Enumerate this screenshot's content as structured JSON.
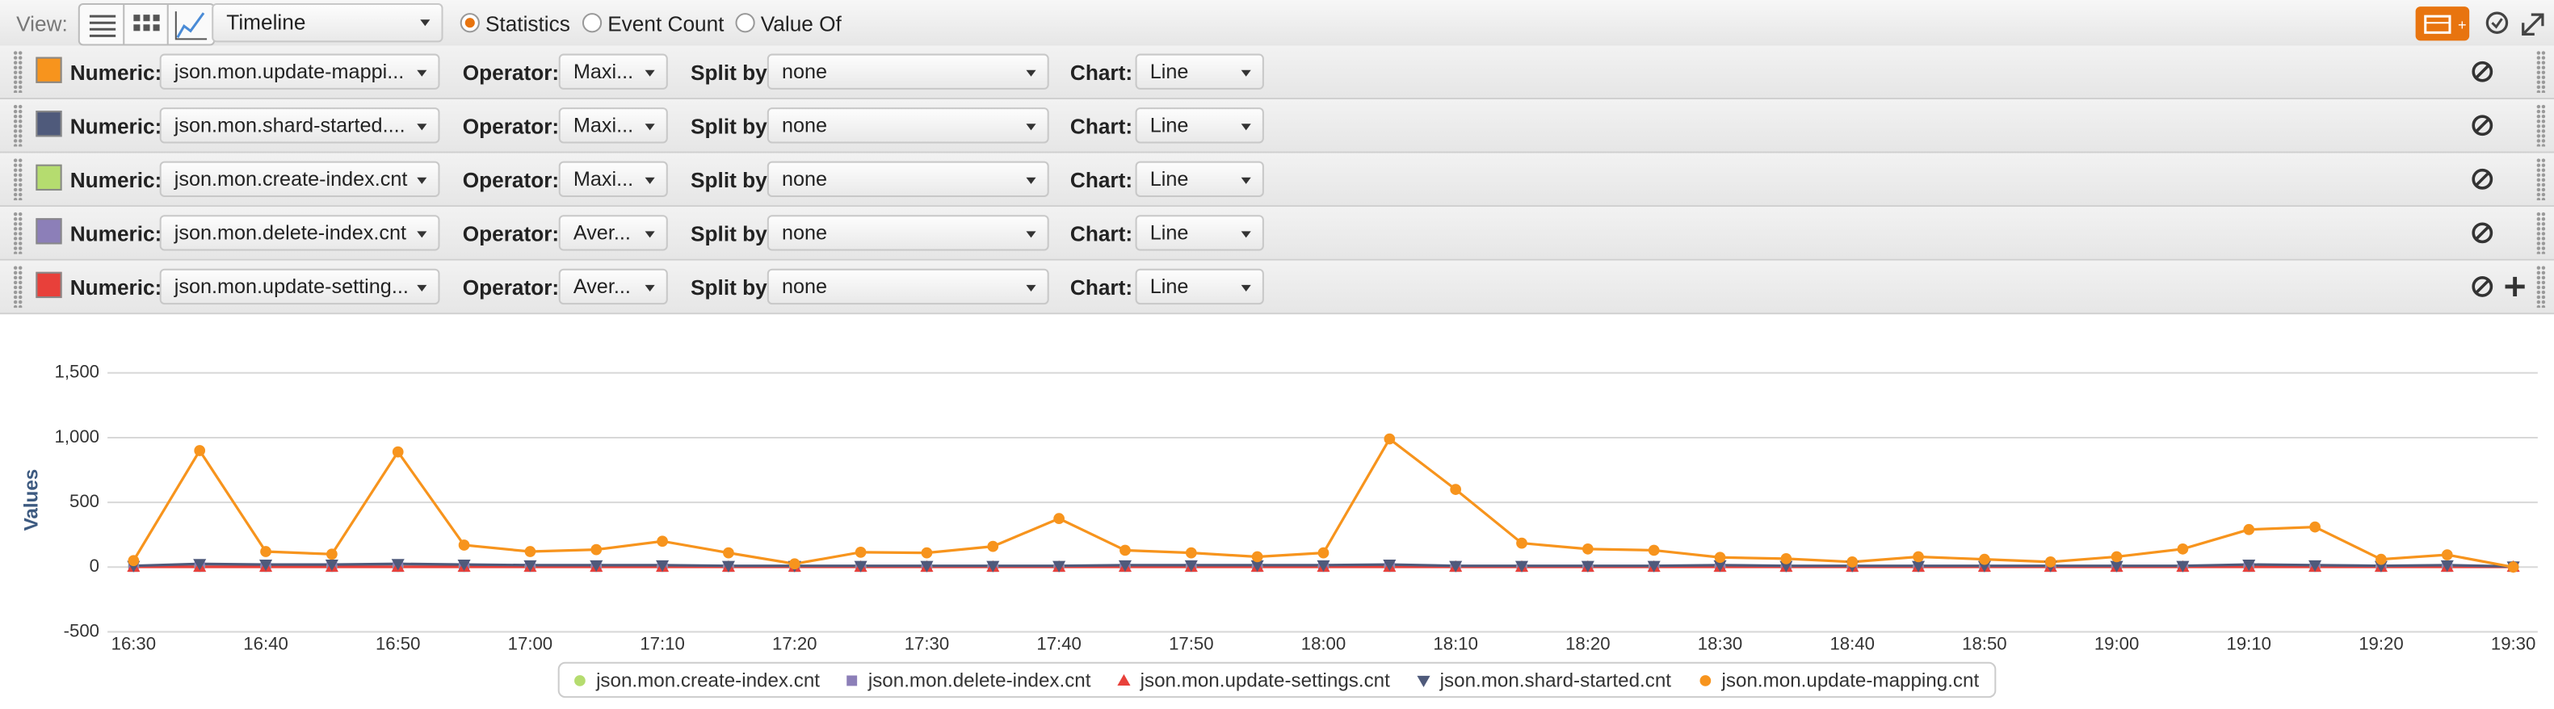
{
  "toolbar": {
    "view_label": "View:",
    "view_select": "Timeline",
    "radios": [
      "Statistics",
      "Event Count",
      "Value Of"
    ],
    "selected_radio": 0
  },
  "filter_labels": {
    "numeric": "Numeric:",
    "operator": "Operator:",
    "split": "Split by:",
    "chart": "Chart:"
  },
  "rows": [
    {
      "color": "#f7941d",
      "numeric": "json.mon.update-mappi...",
      "operator": "Maxi...",
      "split": "none",
      "chart": "Line"
    },
    {
      "color": "#4f5a7b",
      "numeric": "json.mon.shard-started....",
      "operator": "Maxi...",
      "split": "none",
      "chart": "Line"
    },
    {
      "color": "#b5dc6f",
      "numeric": "json.mon.create-index.cnt",
      "operator": "Maxi...",
      "split": "none",
      "chart": "Line"
    },
    {
      "color": "#8c7fb8",
      "numeric": "json.mon.delete-index.cnt",
      "operator": "Aver...",
      "split": "none",
      "chart": "Line"
    },
    {
      "color": "#e8403a",
      "numeric": "json.mon.update-setting...",
      "operator": "Aver...",
      "split": "none",
      "chart": "Line"
    }
  ],
  "chart_data": {
    "type": "line",
    "y_label": "Values",
    "categories": [
      "16:30",
      null,
      "16:40",
      null,
      "16:50",
      null,
      "17:00",
      null,
      "17:10",
      null,
      "17:20",
      null,
      "17:30",
      null,
      "17:40",
      null,
      "17:50",
      null,
      "18:00",
      null,
      "18:10",
      null,
      "18:20",
      null,
      "18:30",
      null,
      "18:40",
      null,
      "18:50",
      null,
      "19:00",
      null,
      "19:10",
      null,
      "19:20",
      null,
      "19:30"
    ],
    "ylim": [
      -500,
      1500
    ],
    "yticks": [
      -500,
      0,
      500,
      {
        "value": 1000,
        "label": "1,000"
      },
      {
        "value": 1500,
        "label": "1,500"
      }
    ],
    "grid": true,
    "series": [
      {
        "name": "json.mon.create-index.cnt",
        "color": "#b5dc6f",
        "marker": "circle",
        "values": [
          5,
          5,
          5,
          5,
          5,
          5,
          5,
          5,
          5,
          5,
          5,
          5,
          5,
          5,
          5,
          5,
          5,
          5,
          5,
          5,
          5,
          5,
          5,
          5,
          5,
          5,
          5,
          5,
          5,
          5,
          5,
          5,
          5,
          5,
          5,
          5,
          5
        ]
      },
      {
        "name": "json.mon.delete-index.cnt",
        "color": "#8c7fb8",
        "marker": "square",
        "values": [
          3,
          3,
          3,
          3,
          3,
          3,
          3,
          3,
          3,
          3,
          3,
          3,
          3,
          3,
          3,
          3,
          3,
          3,
          3,
          3,
          3,
          3,
          3,
          3,
          3,
          3,
          3,
          3,
          3,
          3,
          3,
          3,
          3,
          3,
          3,
          3,
          3
        ]
      },
      {
        "name": "json.mon.update-settings.cnt",
        "color": "#e8403a",
        "marker": "triangle",
        "values": [
          2,
          2,
          2,
          2,
          2,
          2,
          2,
          2,
          2,
          2,
          2,
          2,
          2,
          2,
          2,
          2,
          2,
          2,
          2,
          2,
          2,
          2,
          2,
          2,
          2,
          2,
          2,
          2,
          2,
          2,
          2,
          2,
          2,
          2,
          2,
          2,
          2
        ]
      },
      {
        "name": "json.mon.shard-started.cnt",
        "color": "#4f5a7b",
        "marker": "triangle-down",
        "values": [
          10,
          25,
          20,
          20,
          25,
          20,
          15,
          15,
          15,
          10,
          10,
          10,
          10,
          10,
          10,
          15,
          15,
          15,
          15,
          20,
          10,
          10,
          10,
          10,
          15,
          10,
          10,
          10,
          10,
          10,
          10,
          10,
          20,
          15,
          10,
          15,
          5
        ]
      },
      {
        "name": "json.mon.update-mapping.cnt",
        "color": "#f7941d",
        "marker": "circle",
        "values": [
          50,
          900,
          120,
          100,
          890,
          170,
          120,
          135,
          200,
          110,
          25,
          115,
          110,
          160,
          375,
          130,
          110,
          80,
          110,
          990,
          600,
          185,
          140,
          130,
          75,
          65,
          40,
          80,
          60,
          40,
          80,
          140,
          290,
          310,
          60,
          95,
          0
        ]
      }
    ]
  }
}
